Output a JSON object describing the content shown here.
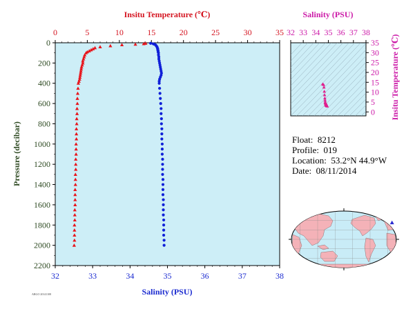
{
  "chart_data": [
    {
      "type": "scatter",
      "top_axis_label": "Insitu Temperature (℃)",
      "bottom_axis_label": "Salinity (PSU)",
      "left_axis_label": "Pressure (decibar)",
      "temperature_axis": {
        "range": [
          0,
          35
        ],
        "ticks": [
          "0",
          "5",
          "10",
          "15",
          "20",
          "25",
          "30",
          "35"
        ]
      },
      "salinity_axis": {
        "range": [
          32,
          38
        ],
        "ticks": [
          "32",
          "33",
          "34",
          "35",
          "36",
          "37",
          "38"
        ]
      },
      "pressure_axis": {
        "range": [
          0,
          2200
        ],
        "reversed": true,
        "ticks": [
          "0",
          "200",
          "400",
          "600",
          "800",
          "1000",
          "1200",
          "1400",
          "1600",
          "1800",
          "2000",
          "2200"
        ]
      },
      "series": [
        {
          "marker": "triangle",
          "color": "#e8141b",
          "pressure": [
            5,
            10,
            15,
            20,
            30,
            40,
            50,
            60,
            70,
            80,
            90,
            100,
            120,
            140,
            160,
            180,
            200,
            220,
            240,
            260,
            280,
            300,
            320,
            340,
            360,
            380,
            400,
            450,
            500,
            550,
            600,
            650,
            700,
            750,
            800,
            850,
            900,
            950,
            1000,
            1050,
            1100,
            1150,
            1200,
            1250,
            1300,
            1350,
            1400,
            1450,
            1500,
            1550,
            1600,
            1650,
            1700,
            1750,
            1800,
            1850,
            1900,
            1950,
            2000
          ],
          "temperature": [
            14.1,
            13.8,
            12.5,
            10.4,
            8.6,
            7.0,
            6.2,
            5.9,
            5.6,
            5.3,
            5.0,
            4.8,
            4.6,
            4.5,
            4.4,
            4.3,
            4.3,
            4.2,
            4.1,
            4.05,
            4.0,
            3.95,
            3.9,
            3.85,
            3.8,
            3.7,
            3.6,
            3.55,
            3.5,
            3.45,
            3.45,
            3.4,
            3.4,
            3.35,
            3.35,
            3.3,
            3.3,
            3.3,
            3.25,
            3.25,
            3.25,
            3.2,
            3.2,
            3.2,
            3.15,
            3.15,
            3.15,
            3.1,
            3.1,
            3.1,
            3.1,
            3.05,
            3.05,
            3.05,
            3.0,
            3.0,
            3.0,
            3.0,
            2.95
          ]
        },
        {
          "marker": "circle",
          "color": "#1020d8",
          "pressure": [
            5,
            10,
            15,
            20,
            30,
            40,
            50,
            60,
            70,
            80,
            90,
            100,
            120,
            140,
            160,
            180,
            200,
            220,
            240,
            260,
            280,
            300,
            320,
            340,
            360,
            380,
            400,
            450,
            500,
            550,
            600,
            650,
            700,
            750,
            800,
            850,
            900,
            950,
            1000,
            1050,
            1100,
            1150,
            1200,
            1250,
            1300,
            1350,
            1400,
            1450,
            1500,
            1550,
            1600,
            1650,
            1700,
            1750,
            1800,
            1850,
            1900,
            1950,
            2000
          ],
          "salinity": [
            34.55,
            34.62,
            34.65,
            34.68,
            34.7,
            34.72,
            34.73,
            34.74,
            34.74,
            34.75,
            34.75,
            34.76,
            34.76,
            34.77,
            34.77,
            34.78,
            34.79,
            34.8,
            34.81,
            34.82,
            34.83,
            34.84,
            34.83,
            34.81,
            34.79,
            34.78,
            34.78,
            34.79,
            34.8,
            34.81,
            34.82,
            34.83,
            34.83,
            34.84,
            34.84,
            34.85,
            34.85,
            34.85,
            34.86,
            34.86,
            34.86,
            34.87,
            34.87,
            34.87,
            34.87,
            34.88,
            34.88,
            34.88,
            34.88,
            34.89,
            34.89,
            34.89,
            34.89,
            34.9,
            34.9,
            34.9,
            34.9,
            34.91,
            34.91
          ]
        }
      ],
      "background_color": "#cdeef7"
    },
    {
      "type": "scatter",
      "top_axis_label": "Salinity (PSU)",
      "right_axis_label": "Insitu Temperature (℃)",
      "salinity_axis": {
        "range": [
          32,
          38
        ],
        "ticks": [
          "32",
          "33",
          "34",
          "35",
          "36",
          "37",
          "38"
        ]
      },
      "temperature_axis": {
        "range": [
          -2,
          35
        ],
        "ticks": [
          "0",
          "5",
          "10",
          "15",
          "20",
          "25",
          "30",
          "35"
        ]
      },
      "density_contours": true,
      "marker": "triangle",
      "color": "#e0208e",
      "salinity": [
        34.55,
        34.62,
        34.65,
        34.68,
        34.7,
        34.72,
        34.74,
        34.75,
        34.76,
        34.78,
        34.8,
        34.82,
        34.84,
        34.82,
        34.8,
        34.8,
        34.82,
        34.84,
        34.85,
        34.86,
        34.87,
        34.88,
        34.89,
        34.9,
        34.91
      ],
      "temperature": [
        14.1,
        13.8,
        12.5,
        10.4,
        8.6,
        7.0,
        5.9,
        5.0,
        4.6,
        4.3,
        4.2,
        4.05,
        3.95,
        3.8,
        3.6,
        3.5,
        3.45,
        3.35,
        3.3,
        3.25,
        3.2,
        3.15,
        3.1,
        3.0,
        2.95
      ]
    }
  ],
  "info": {
    "float_label": "Float:",
    "float_value": "8212",
    "profile_label": "Profile:",
    "profile_value": "019",
    "location_label": "Location:",
    "location_value": "53.2°N  44.9°W",
    "date_label": "Date:",
    "date_value": "08/11/2014"
  },
  "map": {
    "ocean_color": "#c9ecf7",
    "land_color": "#f4b2b8",
    "marker_color": "#2a2ad0",
    "marker_lon": -44.9,
    "marker_lat": 53.2
  },
  "stamp_text": "ARGO  20141108"
}
